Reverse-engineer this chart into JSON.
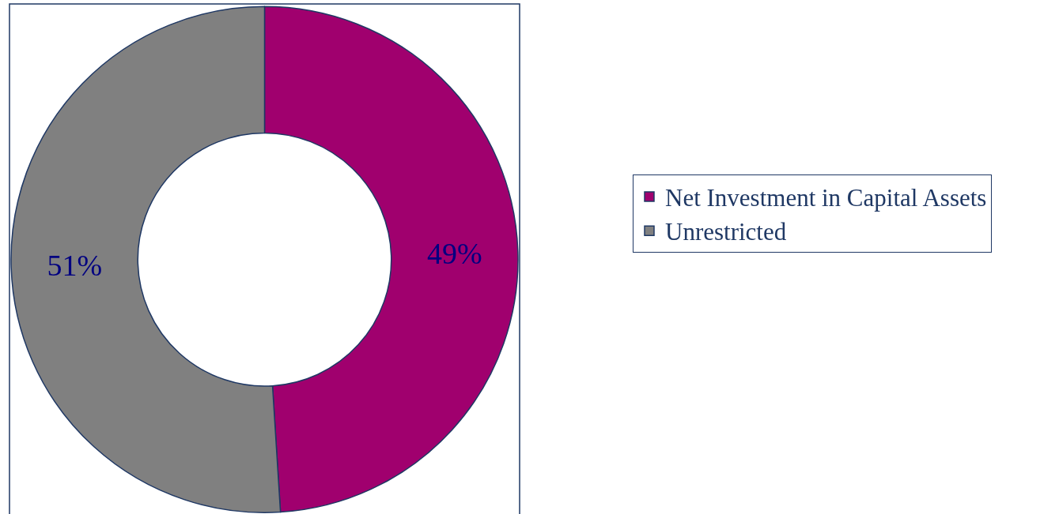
{
  "chart_data": {
    "type": "donut",
    "categories": [
      "Net Investment in Capital Assets",
      "Unrestricted"
    ],
    "values": [
      49,
      51
    ],
    "value_labels": [
      "49%",
      "51%"
    ],
    "colors": [
      "#a0006e",
      "#808080"
    ],
    "legend": "right"
  }
}
